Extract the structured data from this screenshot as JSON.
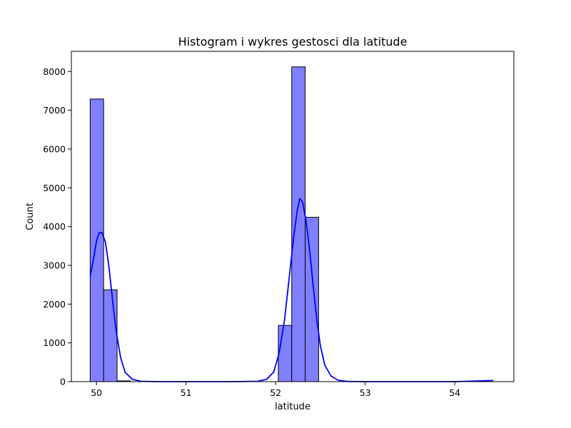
{
  "chart_data": {
    "type": "bar",
    "title": "Histogram i wykres gestosci dla latitude",
    "xlabel": "latitude",
    "ylabel": "Count",
    "xlim": [
      49.72,
      54.66
    ],
    "ylim": [
      0,
      8520
    ],
    "xticks": [
      50,
      51,
      52,
      53,
      54
    ],
    "yticks": [
      0,
      1000,
      2000,
      3000,
      4000,
      5000,
      6000,
      7000,
      8000
    ],
    "grid": false,
    "bar_fill": "#8080ff",
    "bar_edge": "#000000",
    "kde_color": "#0000ff",
    "bins": [
      {
        "x0": 49.93,
        "x1": 50.08,
        "count": 7290
      },
      {
        "x0": 50.08,
        "x1": 50.23,
        "count": 2370
      },
      {
        "x0": 50.23,
        "x1": 50.38,
        "count": 20
      },
      {
        "x0": 52.03,
        "x1": 52.18,
        "count": 1450
      },
      {
        "x0": 52.18,
        "x1": 52.33,
        "count": 8120
      },
      {
        "x0": 52.33,
        "x1": 52.48,
        "count": 4240
      }
    ],
    "kde": {
      "x": [
        49.93,
        49.97,
        50.0,
        50.03,
        50.06,
        50.1,
        50.14,
        50.18,
        50.22,
        50.27,
        50.32,
        50.4,
        50.5,
        50.7,
        51.0,
        51.5,
        51.8,
        51.9,
        51.98,
        52.04,
        52.1,
        52.15,
        52.2,
        52.24,
        52.27,
        52.3,
        52.34,
        52.38,
        52.42,
        52.46,
        52.5,
        52.55,
        52.62,
        52.7,
        52.8,
        53.0,
        53.5,
        54.0,
        54.43
      ],
      "y": [
        2720,
        3200,
        3620,
        3840,
        3850,
        3600,
        2950,
        2100,
        1300,
        620,
        240,
        60,
        10,
        0,
        0,
        0,
        10,
        60,
        250,
        750,
        1600,
        2650,
        3700,
        4400,
        4720,
        4640,
        4150,
        3400,
        2450,
        1600,
        920,
        420,
        140,
        35,
        5,
        0,
        0,
        0,
        30
      ]
    }
  }
}
